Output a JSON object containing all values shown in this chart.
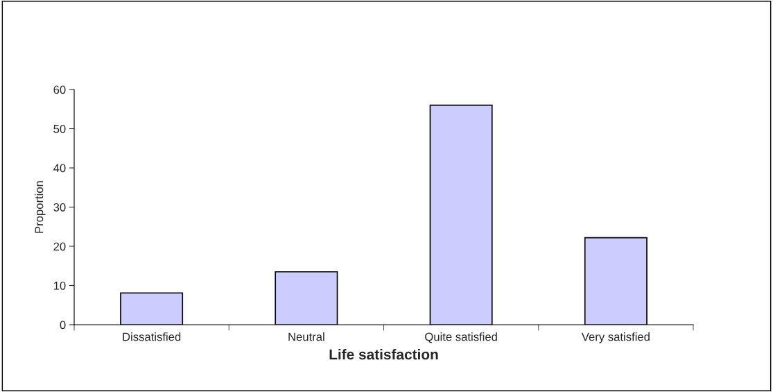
{
  "chart_data": {
    "type": "bar",
    "xlabel": "Life satisfaction",
    "ylabel": "Proportion",
    "categories": [
      "Dissatisfied",
      "Neutral",
      "Quite satisfied",
      "Very satisfied"
    ],
    "values": [
      8.1,
      13.5,
      56.0,
      22.2
    ],
    "color": "#ccccff",
    "ylim": [
      0,
      60
    ],
    "yticks": [
      0,
      10,
      20,
      30,
      40,
      50,
      60
    ],
    "grid": false
  }
}
